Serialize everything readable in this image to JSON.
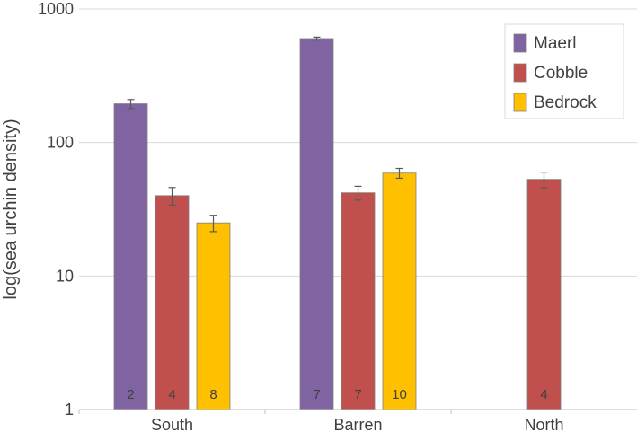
{
  "chart_data": {
    "type": "bar",
    "scale": "log",
    "categories": [
      "South",
      "Barren",
      "North"
    ],
    "ylabel": "log(sea urchin density)",
    "ylim": [
      1,
      1000
    ],
    "yticks": [
      1,
      10,
      100,
      1000
    ],
    "ytick_labels": [
      "1",
      "10",
      "100",
      "1000"
    ],
    "grid": true,
    "legend_position": "top-right",
    "series": [
      {
        "name": "Maerl",
        "color": "#8064a2",
        "values": [
          195,
          600,
          null
        ],
        "errors": [
          15,
          15,
          null
        ],
        "n_labels": [
          "2",
          "7",
          ""
        ]
      },
      {
        "name": "Cobble",
        "color": "#c0504d",
        "values": [
          40,
          42,
          53
        ],
        "errors": [
          6,
          5,
          7
        ],
        "n_labels": [
          "4",
          "7",
          "4"
        ]
      },
      {
        "name": "Bedrock",
        "color": "#ffc000",
        "values": [
          25,
          59,
          null
        ],
        "errors": [
          3.5,
          5,
          null
        ],
        "n_labels": [
          "8",
          "10",
          ""
        ]
      }
    ]
  }
}
